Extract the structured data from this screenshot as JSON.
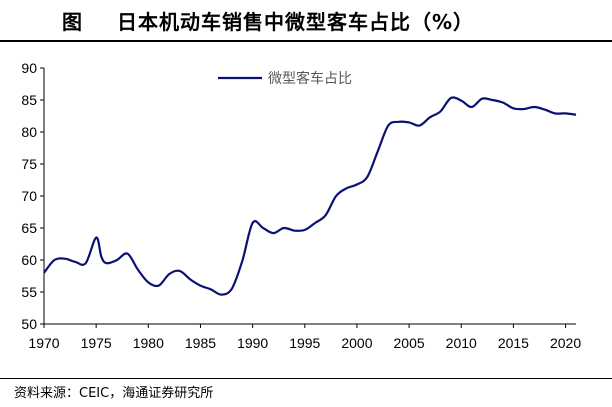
{
  "header": {
    "figure_label": "图",
    "title": "日本机动车销售中微型客车占比（%）"
  },
  "source": "资料来源：CEIC，海通证券研究所",
  "chart_data": {
    "type": "line",
    "title": "日本机动车销售中微型客车占比（%）",
    "xlabel": "",
    "ylabel": "",
    "xlim": [
      1970,
      2021
    ],
    "ylim": [
      50,
      90
    ],
    "xticks": [
      1970,
      1975,
      1980,
      1985,
      1990,
      1995,
      2000,
      2005,
      2010,
      2015,
      2020
    ],
    "yticks": [
      50,
      55,
      60,
      65,
      70,
      75,
      80,
      85,
      90
    ],
    "grid": false,
    "legend": "top-center",
    "color": "#0a1172",
    "series": [
      {
        "name": "微型客车占比",
        "x": [
          1970,
          1971,
          1972,
          1973,
          1974,
          1975,
          1975.5,
          1976,
          1977,
          1978,
          1979,
          1980,
          1981,
          1982,
          1983,
          1984,
          1985,
          1986,
          1987,
          1988,
          1989,
          1990,
          1991,
          1992,
          1993,
          1994,
          1995,
          1996,
          1997,
          1998,
          1999,
          2000,
          2001,
          2002,
          2003,
          2004,
          2005,
          2006,
          2007,
          2008,
          2009,
          2010,
          2011,
          2012,
          2013,
          2014,
          2015,
          2016,
          2017,
          2018,
          2019,
          2020,
          2021
        ],
        "values": [
          58.0,
          60.0,
          60.2,
          59.7,
          59.5,
          63.5,
          60.5,
          59.5,
          60.0,
          61.0,
          58.5,
          56.5,
          56.0,
          57.8,
          58.3,
          57.0,
          56.0,
          55.4,
          54.6,
          55.5,
          59.8,
          65.8,
          65.0,
          64.2,
          65.0,
          64.6,
          64.7,
          65.8,
          67.0,
          70.0,
          71.2,
          71.8,
          73.0,
          77.0,
          81.0,
          81.6,
          81.5,
          81.0,
          82.3,
          83.2,
          85.3,
          84.9,
          83.9,
          85.2,
          85.0,
          84.6,
          83.7,
          83.6,
          83.9,
          83.5,
          82.9,
          82.9,
          82.7
        ]
      }
    ]
  }
}
